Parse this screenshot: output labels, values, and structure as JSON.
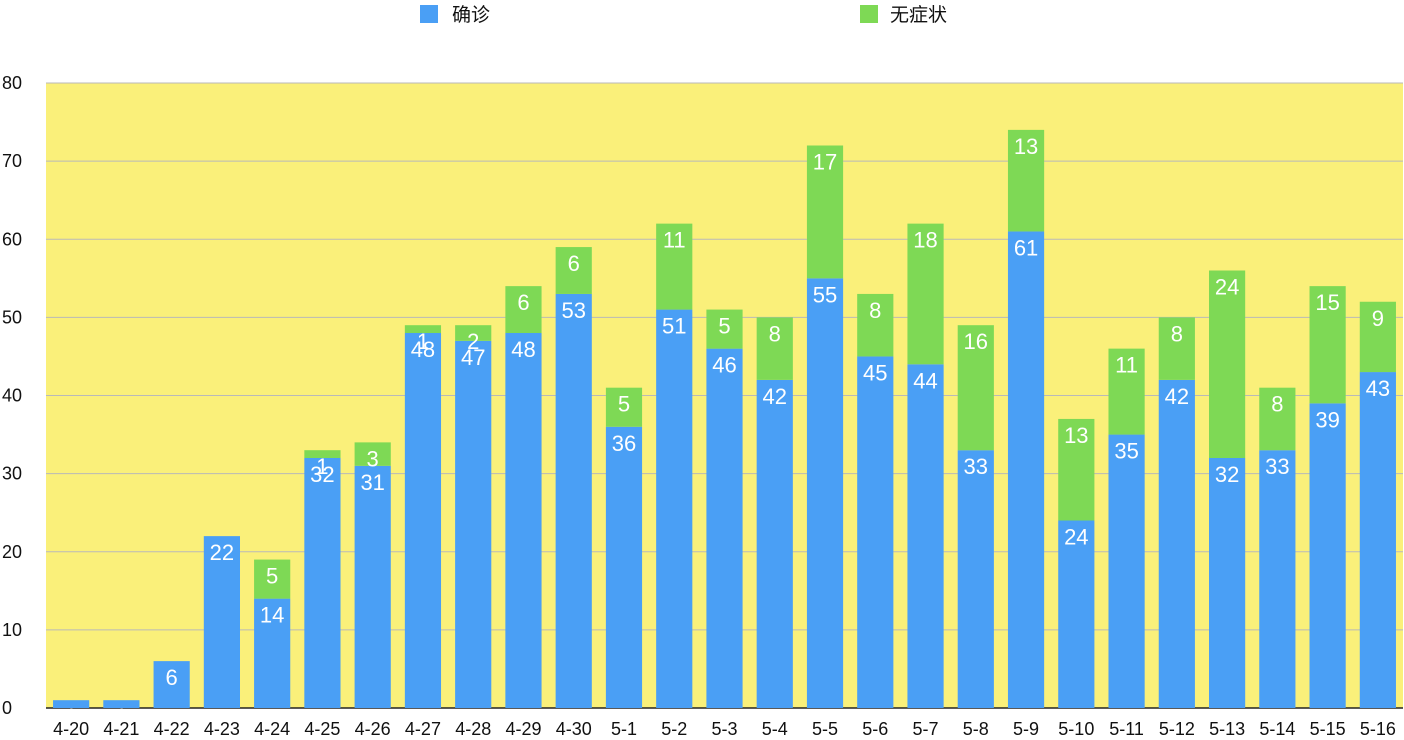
{
  "chart_data": {
    "type": "bar",
    "stacked": true,
    "categories": [
      "4-20",
      "4-21",
      "4-22",
      "4-23",
      "4-24",
      "4-25",
      "4-26",
      "4-27",
      "4-28",
      "4-29",
      "4-30",
      "5-1",
      "5-2",
      "5-3",
      "5-4",
      "5-5",
      "5-6",
      "5-7",
      "5-8",
      "5-9",
      "5-10",
      "5-11",
      "5-12",
      "5-13",
      "5-14",
      "5-15",
      "5-16"
    ],
    "series": [
      {
        "name": "确诊",
        "color": "#4A9FF5",
        "values": [
          1,
          1,
          6,
          22,
          14,
          32,
          31,
          48,
          47,
          48,
          53,
          36,
          51,
          46,
          42,
          55,
          45,
          44,
          33,
          61,
          24,
          35,
          42,
          32,
          33,
          39,
          43
        ]
      },
      {
        "name": "无症状",
        "color": "#7ED955",
        "values": [
          0,
          0,
          0,
          0,
          5,
          1,
          3,
          1,
          2,
          6,
          6,
          5,
          11,
          5,
          8,
          17,
          8,
          18,
          16,
          13,
          13,
          11,
          8,
          24,
          8,
          15,
          9
        ]
      }
    ],
    "ylim": [
      0,
      80
    ],
    "yticks": [
      0,
      10,
      20,
      30,
      40,
      50,
      60,
      70,
      80
    ],
    "grid": true,
    "legend_position": "top",
    "plot_background": "#FAF07A",
    "grid_color": "#B9B9B9"
  }
}
